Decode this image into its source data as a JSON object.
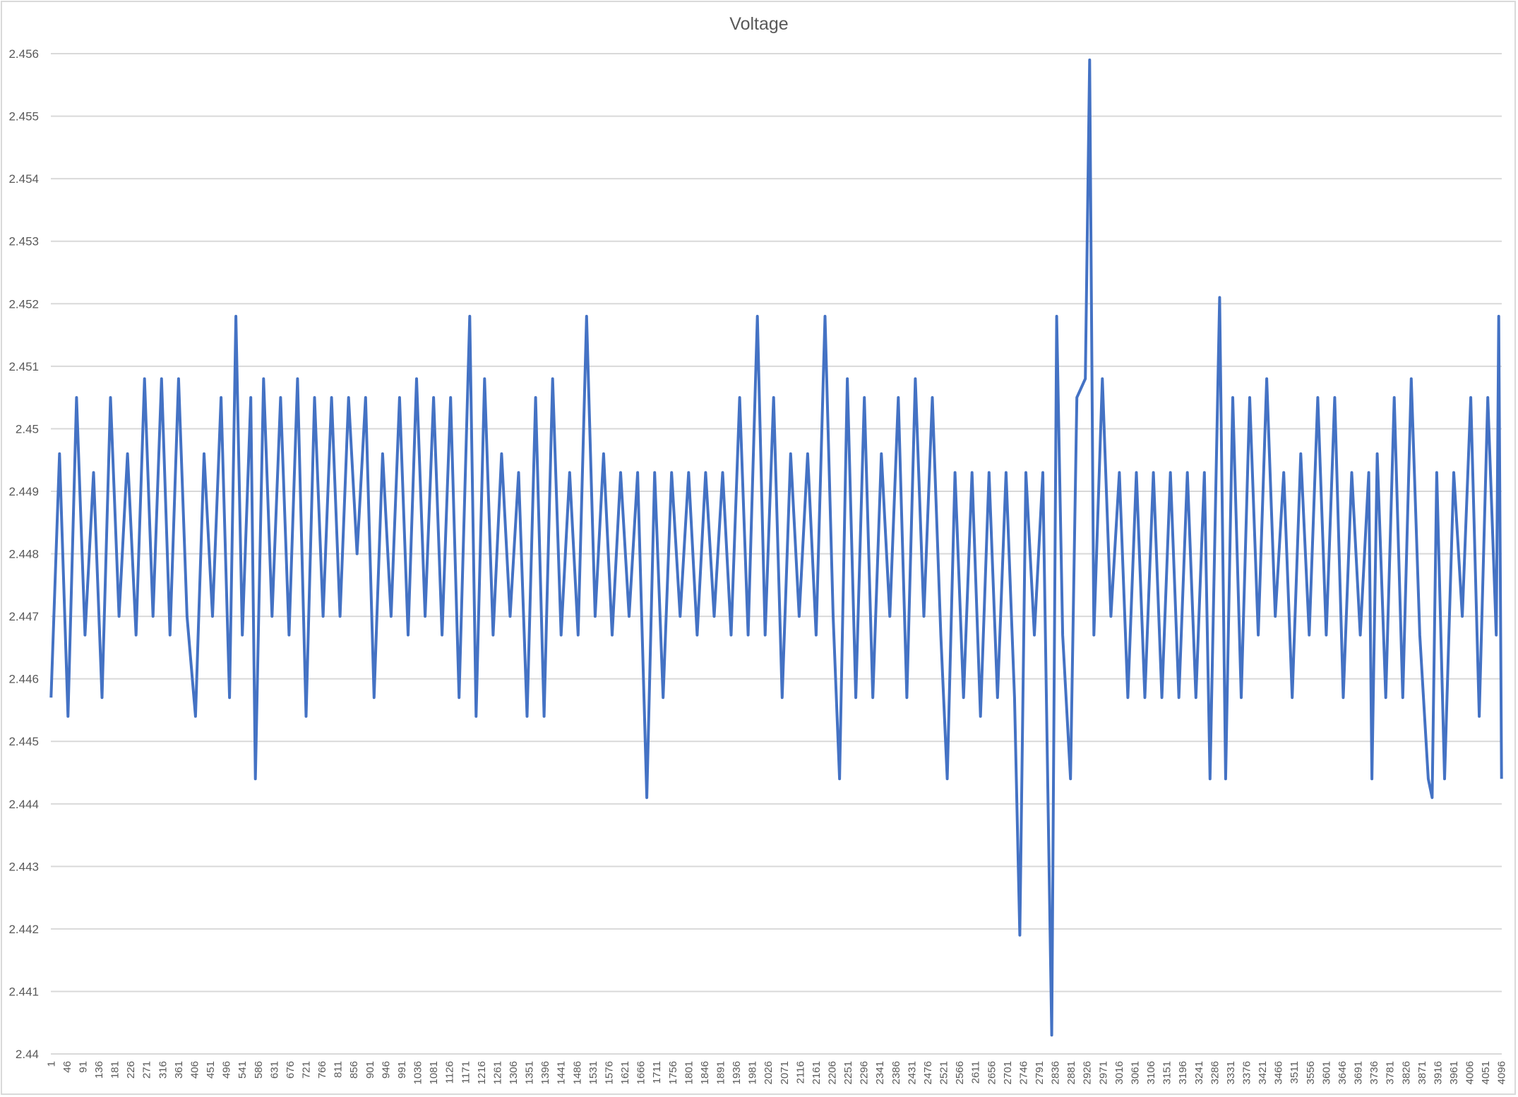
{
  "chart_data": {
    "type": "line",
    "title": "Voltage",
    "xlabel": "",
    "ylabel": "",
    "ylim": [
      2.44,
      2.456
    ],
    "y_ticks": [
      "2.44",
      "2.441",
      "2.442",
      "2.443",
      "2.444",
      "2.445",
      "2.446",
      "2.447",
      "2.448",
      "2.449",
      "2.45",
      "2.451",
      "2.452",
      "2.453",
      "2.454",
      "2.455",
      "2.456"
    ],
    "x_range": [
      1,
      4096
    ],
    "x_tick_start": 1,
    "x_tick_step": 45,
    "grid": "horizontal",
    "legend": "none",
    "color": "#4472c4",
    "series": [
      {
        "points": [
          [
            1,
            2.4457
          ],
          [
            25,
            2.4496
          ],
          [
            49,
            2.4454
          ],
          [
            73,
            2.4505
          ],
          [
            97,
            2.4467
          ],
          [
            121,
            2.4493
          ],
          [
            145,
            2.4457
          ],
          [
            169,
            2.4505
          ],
          [
            193,
            2.447
          ],
          [
            217,
            2.4496
          ],
          [
            241,
            2.4467
          ],
          [
            265,
            2.4508
          ],
          [
            289,
            2.447
          ],
          [
            313,
            2.4508
          ],
          [
            337,
            2.4467
          ],
          [
            361,
            2.4508
          ],
          [
            385,
            2.447
          ],
          [
            409,
            2.4454
          ],
          [
            433,
            2.4496
          ],
          [
            457,
            2.447
          ],
          [
            481,
            2.4505
          ],
          [
            505,
            2.4457
          ],
          [
            523,
            2.4518
          ],
          [
            541,
            2.4467
          ],
          [
            565,
            2.4505
          ],
          [
            578,
            2.4444
          ],
          [
            601,
            2.4508
          ],
          [
            625,
            2.447
          ],
          [
            649,
            2.4505
          ],
          [
            673,
            2.4467
          ],
          [
            697,
            2.4508
          ],
          [
            721,
            2.4454
          ],
          [
            745,
            2.4505
          ],
          [
            769,
            2.447
          ],
          [
            793,
            2.4505
          ],
          [
            817,
            2.447
          ],
          [
            841,
            2.4505
          ],
          [
            865,
            2.448
          ],
          [
            889,
            2.4505
          ],
          [
            913,
            2.4457
          ],
          [
            937,
            2.4496
          ],
          [
            961,
            2.447
          ],
          [
            985,
            2.4505
          ],
          [
            1009,
            2.4467
          ],
          [
            1033,
            2.4508
          ],
          [
            1057,
            2.447
          ],
          [
            1081,
            2.4505
          ],
          [
            1105,
            2.4467
          ],
          [
            1129,
            2.4505
          ],
          [
            1153,
            2.4457
          ],
          [
            1183,
            2.4518
          ],
          [
            1201,
            2.4454
          ],
          [
            1225,
            2.4508
          ],
          [
            1249,
            2.4467
          ],
          [
            1273,
            2.4496
          ],
          [
            1297,
            2.447
          ],
          [
            1321,
            2.4493
          ],
          [
            1345,
            2.4454
          ],
          [
            1369,
            2.4505
          ],
          [
            1393,
            2.4454
          ],
          [
            1417,
            2.4508
          ],
          [
            1441,
            2.4467
          ],
          [
            1465,
            2.4493
          ],
          [
            1489,
            2.4467
          ],
          [
            1513,
            2.4518
          ],
          [
            1537,
            2.447
          ],
          [
            1561,
            2.4496
          ],
          [
            1585,
            2.4467
          ],
          [
            1609,
            2.4493
          ],
          [
            1633,
            2.447
          ],
          [
            1657,
            2.4493
          ],
          [
            1683,
            2.4441
          ],
          [
            1705,
            2.4493
          ],
          [
            1729,
            2.4457
          ],
          [
            1753,
            2.4493
          ],
          [
            1777,
            2.447
          ],
          [
            1801,
            2.4493
          ],
          [
            1825,
            2.4467
          ],
          [
            1849,
            2.4493
          ],
          [
            1873,
            2.447
          ],
          [
            1897,
            2.4493
          ],
          [
            1921,
            2.4467
          ],
          [
            1945,
            2.4505
          ],
          [
            1969,
            2.4467
          ],
          [
            1995,
            2.4518
          ],
          [
            2017,
            2.4467
          ],
          [
            2041,
            2.4505
          ],
          [
            2065,
            2.4457
          ],
          [
            2089,
            2.4496
          ],
          [
            2113,
            2.447
          ],
          [
            2137,
            2.4496
          ],
          [
            2161,
            2.4467
          ],
          [
            2186,
            2.4518
          ],
          [
            2209,
            2.447
          ],
          [
            2227,
            2.4444
          ],
          [
            2249,
            2.4508
          ],
          [
            2273,
            2.4457
          ],
          [
            2297,
            2.4505
          ],
          [
            2321,
            2.4457
          ],
          [
            2345,
            2.4496
          ],
          [
            2369,
            2.447
          ],
          [
            2393,
            2.4505
          ],
          [
            2417,
            2.4457
          ],
          [
            2441,
            2.4508
          ],
          [
            2465,
            2.447
          ],
          [
            2489,
            2.4505
          ],
          [
            2513,
            2.4467
          ],
          [
            2531,
            2.4444
          ],
          [
            2553,
            2.4493
          ],
          [
            2577,
            2.4457
          ],
          [
            2601,
            2.4493
          ],
          [
            2625,
            2.4454
          ],
          [
            2649,
            2.4493
          ],
          [
            2673,
            2.4457
          ],
          [
            2697,
            2.4493
          ],
          [
            2721,
            2.4457
          ],
          [
            2736,
            2.4419
          ],
          [
            2753,
            2.4493
          ],
          [
            2777,
            2.4467
          ],
          [
            2801,
            2.4493
          ],
          [
            2826,
            2.4403
          ],
          [
            2840,
            2.4518
          ],
          [
            2857,
            2.4467
          ],
          [
            2879,
            2.4444
          ],
          [
            2897,
            2.4505
          ],
          [
            2921,
            2.4508
          ],
          [
            2933,
            2.4559
          ],
          [
            2945,
            2.4467
          ],
          [
            2969,
            2.4508
          ],
          [
            2993,
            2.447
          ],
          [
            3017,
            2.4493
          ],
          [
            3041,
            2.4457
          ],
          [
            3065,
            2.4493
          ],
          [
            3089,
            2.4457
          ],
          [
            3113,
            2.4493
          ],
          [
            3137,
            2.4457
          ],
          [
            3161,
            2.4493
          ],
          [
            3185,
            2.4457
          ],
          [
            3209,
            2.4493
          ],
          [
            3233,
            2.4457
          ],
          [
            3257,
            2.4493
          ],
          [
            3273,
            2.4444
          ],
          [
            3300,
            2.4521
          ],
          [
            3317,
            2.4444
          ],
          [
            3337,
            2.4505
          ],
          [
            3361,
            2.4457
          ],
          [
            3385,
            2.4505
          ],
          [
            3409,
            2.4467
          ],
          [
            3433,
            2.4508
          ],
          [
            3457,
            2.447
          ],
          [
            3481,
            2.4493
          ],
          [
            3505,
            2.4457
          ],
          [
            3529,
            2.4496
          ],
          [
            3553,
            2.4467
          ],
          [
            3577,
            2.4505
          ],
          [
            3601,
            2.4467
          ],
          [
            3625,
            2.4505
          ],
          [
            3649,
            2.4457
          ],
          [
            3673,
            2.4493
          ],
          [
            3697,
            2.4467
          ],
          [
            3721,
            2.4493
          ],
          [
            3730,
            2.4444
          ],
          [
            3745,
            2.4496
          ],
          [
            3769,
            2.4457
          ],
          [
            3793,
            2.4505
          ],
          [
            3817,
            2.4457
          ],
          [
            3841,
            2.4508
          ],
          [
            3865,
            2.4467
          ],
          [
            3889,
            2.4444
          ],
          [
            3900,
            2.4441
          ],
          [
            3913,
            2.4493
          ],
          [
            3935,
            2.4444
          ],
          [
            3961,
            2.4493
          ],
          [
            3985,
            2.447
          ],
          [
            4009,
            2.4505
          ],
          [
            4033,
            2.4454
          ],
          [
            4057,
            2.4505
          ],
          [
            4081,
            2.4467
          ],
          [
            4088,
            2.4518
          ],
          [
            4096,
            2.4444
          ]
        ]
      }
    ]
  }
}
